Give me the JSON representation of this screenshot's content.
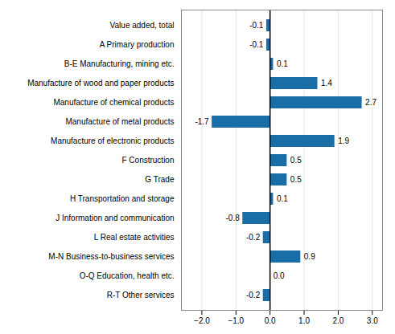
{
  "chart_data": {
    "type": "bar",
    "orientation": "horizontal",
    "categories": [
      "R-T Other services",
      "O-Q Education, health etc.",
      "M-N Business-to-business services",
      "L Real estate activities",
      "J Information and communication",
      "H Transportation and storage",
      "G Trade",
      "F Construction",
      "Manufacture of electronic products",
      "Manufacture of metal products",
      "Manufacture of chemical products",
      "Manufacture of wood and paper products",
      "B-E Manufacturing, mining etc.",
      "A Primary production",
      "Value added, total"
    ],
    "values": [
      -0.2,
      0.0,
      0.9,
      -0.2,
      -0.8,
      0.1,
      0.5,
      0.5,
      1.9,
      -1.7,
      2.7,
      1.4,
      0.1,
      -0.1,
      -0.1
    ],
    "color": "#1a6ea8",
    "xlim": [
      -2.6,
      3.3
    ],
    "xticks": [
      -2,
      -1,
      0,
      1,
      2,
      3
    ],
    "grid": true,
    "data_labels": true
  }
}
